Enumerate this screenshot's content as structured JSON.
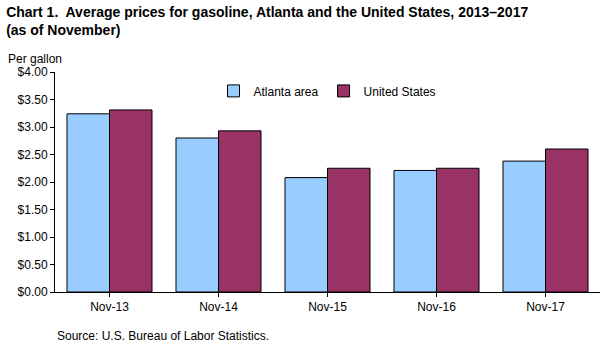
{
  "chart_data": {
    "type": "bar",
    "title": "Chart 1.  Average prices for gasoline, Atlanta and the United States, 2013–2017\n(as of November)",
    "ylabel": "Per gallon",
    "annotations": [
      "Source: U.S. Bureau of Labor Statistics."
    ],
    "categories": [
      "Nov-13",
      "Nov-14",
      "Nov-15",
      "Nov-16",
      "Nov-17"
    ],
    "series": [
      {
        "name": "Atlanta area",
        "color": "#99ccff",
        "values": [
          3.24,
          2.8,
          2.08,
          2.21,
          2.38
        ]
      },
      {
        "name": "United States",
        "color": "#993366",
        "values": [
          3.31,
          2.93,
          2.25,
          2.25,
          2.6
        ]
      }
    ],
    "ylim": [
      0,
      4
    ],
    "yticks": [
      {
        "value": 0,
        "label": "$0.00"
      },
      {
        "value": 0.5,
        "label": "$0.50"
      },
      {
        "value": 1,
        "label": "$1.00"
      },
      {
        "value": 1.5,
        "label": "$1.50"
      },
      {
        "value": 2,
        "label": "$2.00"
      },
      {
        "value": 2.5,
        "label": "$2.50"
      },
      {
        "value": 3,
        "label": "$3.00"
      },
      {
        "value": 3.5,
        "label": "$3.50"
      },
      {
        "value": 4,
        "label": "$4.00"
      }
    ],
    "grid": false,
    "legend": "top"
  }
}
